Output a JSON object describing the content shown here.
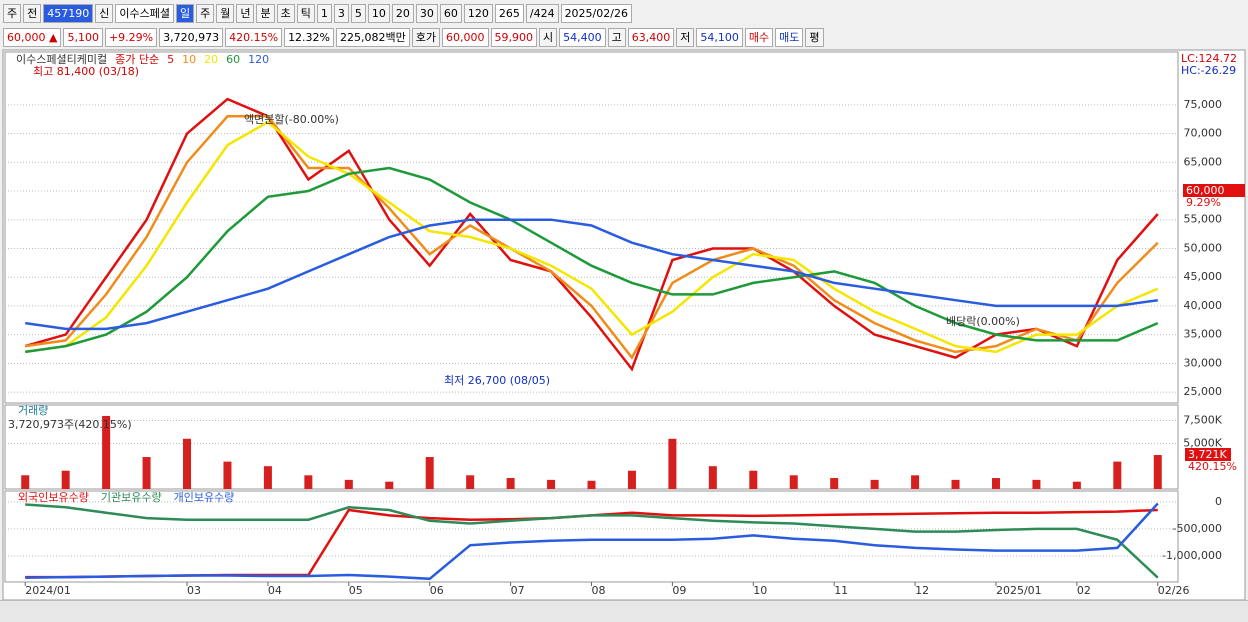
{
  "toolbar": {
    "period_type": "주",
    "prev": "전",
    "code": "457190",
    "nav": "신",
    "name": "이수스페셜",
    "intervals": [
      "일",
      "주",
      "월",
      "년",
      "분",
      "초",
      "틱"
    ],
    "counts": [
      "1",
      "3",
      "5",
      "10",
      "20",
      "30",
      "60",
      "120"
    ],
    "bar_count": "265",
    "bar_total": "/424",
    "date": "2025/02/26"
  },
  "quote": {
    "price": "60,000 ▲",
    "change": "5,100",
    "change_pct": "+9.29%",
    "volume": "3,720,973",
    "volume_ratio": "420.15%",
    "turnover": "12.32%",
    "amount": "225,082백만",
    "ask_label": "호가",
    "ask": "60,000",
    "bid": "59,900",
    "open_label": "시",
    "open": "54,400",
    "high_label": "고",
    "high": "63,400",
    "low_label": "저",
    "low": "54,100",
    "buy": "매수",
    "sell": "매도",
    "eval": "평"
  },
  "chart_data": [
    {
      "type": "line",
      "name": "이수스페셜티케미컬",
      "ma_label": "종가 단순",
      "categories": [
        "2024/01",
        null,
        null,
        null,
        "03",
        null,
        "04",
        null,
        "05",
        null,
        "06",
        null,
        "07",
        null,
        "08",
        null,
        "09",
        null,
        "10",
        null,
        "11",
        null,
        "12",
        null,
        "2025/01",
        null,
        "02",
        null,
        "02/26"
      ],
      "series": [
        {
          "name": "5",
          "color": "#e01010",
          "values": [
            33000,
            35000,
            45000,
            55000,
            70000,
            76000,
            73000,
            62000,
            67000,
            55000,
            47000,
            56000,
            48000,
            46000,
            38000,
            29000,
            48000,
            50000,
            50000,
            46000,
            40000,
            35000,
            33000,
            31000,
            35000,
            36000,
            33000,
            48000,
            56000
          ]
        },
        {
          "name": "10",
          "color": "#f08c1a",
          "values": [
            33000,
            34000,
            42000,
            52000,
            65000,
            73000,
            73000,
            64000,
            64000,
            57000,
            49000,
            54000,
            50000,
            46000,
            40000,
            31000,
            44000,
            48000,
            50000,
            47000,
            41000,
            37000,
            34000,
            32000,
            33000,
            36000,
            34000,
            44000,
            51000
          ]
        },
        {
          "name": "20",
          "color": "#f5e600",
          "values": [
            32000,
            33000,
            38000,
            47000,
            58000,
            68000,
            72000,
            66000,
            63000,
            58000,
            53000,
            52000,
            50000,
            47000,
            43000,
            35000,
            39000,
            45000,
            49000,
            48000,
            43000,
            39000,
            36000,
            33000,
            32000,
            35000,
            35000,
            40000,
            43000
          ]
        },
        {
          "name": "60",
          "color": "#1e9a3a",
          "values": [
            32000,
            33000,
            35000,
            39000,
            45000,
            53000,
            59000,
            60000,
            63000,
            64000,
            62000,
            58000,
            55000,
            51000,
            47000,
            44000,
            42000,
            42000,
            44000,
            45000,
            46000,
            44000,
            40000,
            37000,
            35000,
            34000,
            34000,
            34000,
            37000
          ]
        },
        {
          "name": "120",
          "color": "#2a5ce0",
          "values": [
            37000,
            36000,
            36000,
            37000,
            39000,
            41000,
            43000,
            46000,
            49000,
            52000,
            54000,
            55000,
            55000,
            55000,
            54000,
            51000,
            49000,
            48000,
            47000,
            46000,
            44000,
            43000,
            42000,
            41000,
            40000,
            40000,
            40000,
            40000,
            41000
          ]
        }
      ],
      "ylim": [
        23100,
        84200
      ],
      "yticks": [
        {
          "value": 25000,
          "label": "25,000"
        },
        {
          "value": 30000,
          "label": "30,000"
        },
        {
          "value": 35000,
          "label": "35,000"
        },
        {
          "value": 40000,
          "label": "40,000"
        },
        {
          "value": 45000,
          "label": "45,000"
        },
        {
          "value": 50000,
          "label": "50,000"
        },
        {
          "value": 55000,
          "label": "55,000"
        },
        {
          "value": 60000,
          "label": "60,000"
        },
        {
          "value": 65000,
          "label": "65,000"
        },
        {
          "value": 70000,
          "label": "70,000"
        },
        {
          "value": 75000,
          "label": "75,000"
        }
      ],
      "grid": true,
      "high_note": "최고 81,400 (03/18)",
      "split_note": "액면분할(-80.00%)",
      "low_note": "최저 26,700 (08/05)",
      "dividend_note": "배당락(0.00%)",
      "lc": "LC:124.72",
      "hc": "HC:-26.29",
      "last_price": "60,000",
      "last_change": "9.29%"
    },
    {
      "type": "bar",
      "title": "거래량",
      "summary": "3,720,973주(420.15%)",
      "color": "#d62020",
      "values": [
        1500,
        2000,
        8000,
        3500,
        5500,
        3000,
        2500,
        1500,
        1000,
        800,
        3500,
        1500,
        1200,
        1000,
        900,
        2000,
        5500,
        2500,
        2000,
        1500,
        1200,
        1000,
        1500,
        1000,
        1200,
        1000,
        800,
        3000,
        3721
      ],
      "ylim": [
        0,
        9200
      ],
      "yticks": [
        {
          "value": 5000,
          "label": "5,000K"
        },
        {
          "value": 7500,
          "label": "7,500K"
        }
      ],
      "grid": true,
      "last_volume": "3,721K",
      "last_ratio": "420.15%"
    },
    {
      "type": "line",
      "series": [
        {
          "name": "외국인보유수량",
          "color": "#e01010",
          "values": [
            -1390000,
            -1390000,
            -1380000,
            -1370000,
            -1360000,
            -1350000,
            -1350000,
            -1350000,
            -150000,
            -250000,
            -300000,
            -330000,
            -320000,
            -300000,
            -250000,
            -200000,
            -250000,
            -250000,
            -260000,
            -250000,
            -240000,
            -230000,
            -220000,
            -210000,
            -200000,
            -200000,
            -190000,
            -180000,
            -150000
          ]
        },
        {
          "name": "기관보유수량",
          "color": "#2e8b57",
          "values": [
            -50000,
            -100000,
            -200000,
            -300000,
            -330000,
            -330000,
            -330000,
            -330000,
            -100000,
            -150000,
            -350000,
            -400000,
            -350000,
            -300000,
            -250000,
            -250000,
            -300000,
            -350000,
            -380000,
            -400000,
            -450000,
            -500000,
            -550000,
            -550000,
            -520000,
            -500000,
            -500000,
            -700000,
            -1400000
          ]
        },
        {
          "name": "개인보유수량",
          "color": "#2a5ce0",
          "values": [
            -1400000,
            -1390000,
            -1380000,
            -1370000,
            -1360000,
            -1360000,
            -1370000,
            -1370000,
            -1350000,
            -1380000,
            -1420000,
            -800000,
            -750000,
            -720000,
            -700000,
            -700000,
            -700000,
            -680000,
            -620000,
            -680000,
            -720000,
            -800000,
            -850000,
            -880000,
            -900000,
            -900000,
            -900000,
            -850000,
            -30000
          ]
        }
      ],
      "ylim": [
        -1480000,
        200000
      ],
      "yticks": [
        0,
        {
          "value": -500000,
          "label": "-500,000"
        },
        {
          "value": -1000000,
          "label": "-1,000,000"
        }
      ],
      "grid": true
    }
  ]
}
